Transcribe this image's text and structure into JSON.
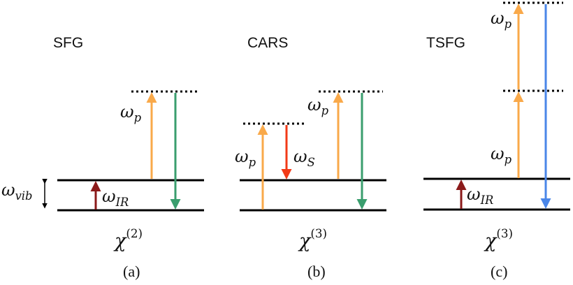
{
  "panels": [
    {
      "title": "SFG",
      "susceptibility": {
        "symbol": "χ",
        "order": "(2)"
      },
      "caption": "(a)",
      "labels": {
        "pump": "ω",
        "pump_sub": "p",
        "ir": "ω",
        "ir_sub": "IR",
        "vib": "ω",
        "vib_sub": "vib"
      }
    },
    {
      "title": "CARS",
      "susceptibility": {
        "symbol": "χ",
        "order": "(3)"
      },
      "caption": "(b)",
      "labels": {
        "pump1": "ω",
        "pump1_sub": "p",
        "stokes": "ω",
        "stokes_sub": "S",
        "pump2": "ω",
        "pump2_sub": "p"
      }
    },
    {
      "title": "TSFG",
      "susceptibility": {
        "symbol": "χ",
        "order": "(3)"
      },
      "caption": "(c)",
      "labels": {
        "pump_upper": "ω",
        "pump_upper_sub": "p",
        "pump_lower": "ω",
        "pump_lower_sub": "p",
        "ir": "ω",
        "ir_sub": "IR"
      }
    }
  ],
  "colors": {
    "pump": "#f9a94a",
    "ir": "#8b1a1a",
    "signal_sfg": "#3a9e6e",
    "stokes": "#f23a17",
    "signal_tsfg": "#4a86e8",
    "level": "#000000"
  }
}
